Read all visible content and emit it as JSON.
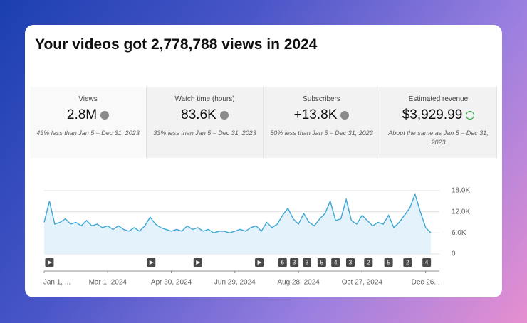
{
  "title": "Your videos got 2,778,788 views in 2024",
  "cards": [
    {
      "label": "Views",
      "value": "2.8M",
      "note": "43% less than Jan 5 – Dec 31, 2023",
      "icon": "down"
    },
    {
      "label": "Watch time (hours)",
      "value": "83.6K",
      "note": "33% less than Jan 5 – Dec 31, 2023",
      "icon": "down"
    },
    {
      "label": "Subscribers",
      "value": "+13.8K",
      "note": "50% less than Jan 5 – Dec 31, 2023",
      "icon": "down"
    },
    {
      "label": "Estimated revenue",
      "value": "$3,929.99",
      "note": "About the same as Jan 5 – Dec 31, 2023",
      "icon": "check"
    }
  ],
  "chart_data": {
    "type": "area",
    "color": "#3ea6d3",
    "grid": true,
    "x": [
      0,
      5,
      10,
      15,
      20,
      25,
      30,
      35,
      40,
      45,
      50,
      55,
      60,
      65,
      70,
      75,
      80,
      85,
      90,
      95,
      100,
      105,
      110,
      115,
      120,
      125,
      130,
      135,
      140,
      145,
      150,
      155,
      160,
      165,
      170,
      175,
      180,
      185,
      190,
      195,
      200,
      205,
      210,
      215,
      220,
      225,
      230,
      235,
      240,
      245,
      250,
      255,
      260,
      265,
      270,
      275,
      280,
      285,
      290,
      295,
      300,
      305,
      310,
      315,
      320,
      325,
      330,
      335,
      340,
      345,
      350,
      355,
      360,
      365
    ],
    "values": [
      9000,
      15000,
      8500,
      9000,
      10000,
      8500,
      9000,
      8000,
      9500,
      8000,
      8500,
      7500,
      8000,
      7000,
      8000,
      7000,
      6500,
      7500,
      6500,
      8000,
      10500,
      8500,
      7500,
      7000,
      6500,
      7000,
      6500,
      8000,
      7000,
      7500,
      6500,
      7000,
      6000,
      6500,
      6500,
      6000,
      6500,
      7000,
      6500,
      7500,
      8000,
      6500,
      9000,
      7500,
      8500,
      11000,
      13000,
      10000,
      8500,
      11500,
      9000,
      8000,
      10000,
      11500,
      15000,
      9500,
      10000,
      15500,
      9500,
      8500,
      11000,
      9500,
      8000,
      9000,
      8500,
      11000,
      7500,
      9000,
      11000,
      13000,
      17000,
      12000,
      7500,
      6000
    ],
    "xlim": [
      0,
      373
    ],
    "xticks": [
      {
        "value": 0,
        "label": "Jan 1, ..."
      },
      {
        "value": 60,
        "label": "Mar 1, 2024"
      },
      {
        "value": 120,
        "label": "Apr 30, 2024"
      },
      {
        "value": 180,
        "label": "Jun 29, 2024"
      },
      {
        "value": 240,
        "label": "Aug 28, 2024"
      },
      {
        "value": 300,
        "label": "Oct 27, 2024"
      },
      {
        "value": 360,
        "label": "Dec 26..."
      }
    ],
    "ylim": [
      0,
      18000
    ],
    "yticks": [
      0,
      {
        "value": 6000,
        "label": "6.0K"
      },
      {
        "value": 12000,
        "label": "12.0K"
      },
      {
        "value": 18000,
        "label": "18.0K"
      }
    ],
    "events": [
      {
        "x": 5
      },
      {
        "x": 101
      },
      {
        "x": 145
      },
      {
        "x": 203
      },
      {
        "x": 225,
        "label": "6"
      },
      {
        "x": 236,
        "label": "3"
      },
      {
        "x": 248,
        "label": "3"
      },
      {
        "x": 262,
        "label": "5"
      },
      {
        "x": 275,
        "label": "4"
      },
      {
        "x": 289,
        "label": "3"
      },
      {
        "x": 306,
        "label": "2"
      },
      {
        "x": 325,
        "label": "5"
      },
      {
        "x": 343,
        "label": "2"
      },
      {
        "x": 361,
        "label": "4"
      }
    ]
  }
}
